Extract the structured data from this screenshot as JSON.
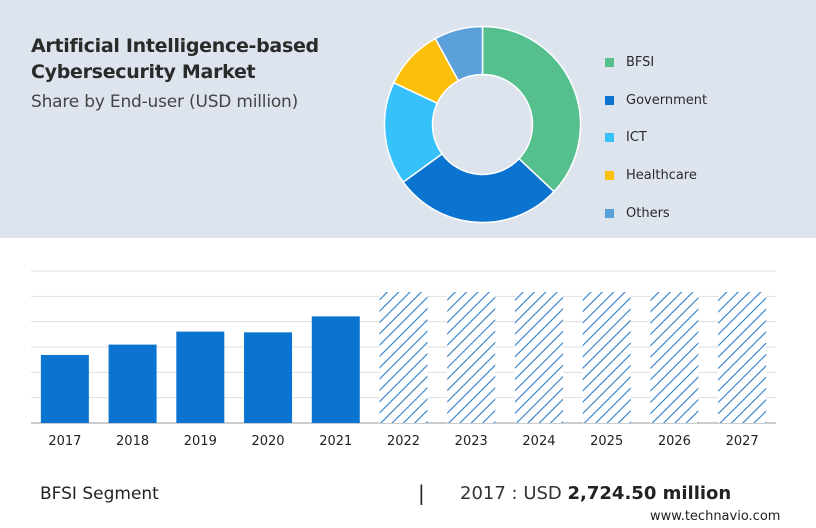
{
  "header": {
    "title": "Artificial Intelligence-based Cybersecurity Market",
    "subtitle": "Share by End-user (USD million)"
  },
  "chart_data": [
    {
      "type": "pie",
      "variant": "donut",
      "categories": [
        "BFSI",
        "Government",
        "ICT",
        "Healthcare",
        "Others"
      ],
      "values": [
        37,
        28,
        17,
        10,
        8
      ],
      "colors": [
        "#55c08e",
        "#0a74d0",
        "#36c1fb",
        "#fbbf0c",
        "#5aa0da"
      ],
      "legend": "right"
    },
    {
      "type": "bar",
      "categories": [
        "2017",
        "2018",
        "2019",
        "2020",
        "2021",
        "2022",
        "2023",
        "2024",
        "2025",
        "2026",
        "2027"
      ],
      "values": [
        2724.5,
        3140,
        3660,
        3630,
        4270,
        null,
        null,
        null,
        null,
        null,
        null
      ],
      "forecast_hatched": [
        "2022",
        "2023",
        "2024",
        "2025",
        "2026",
        "2027"
      ],
      "bar_color": "#0a74d0",
      "hatch_color": "#2c7ec8",
      "grid": true
    }
  ],
  "footer": {
    "segment_label": "BFSI Segment",
    "separator": "|",
    "value_prefix": "2017 : USD",
    "value_amount": "2,724.50 million",
    "brand": "www.technavio.com"
  }
}
